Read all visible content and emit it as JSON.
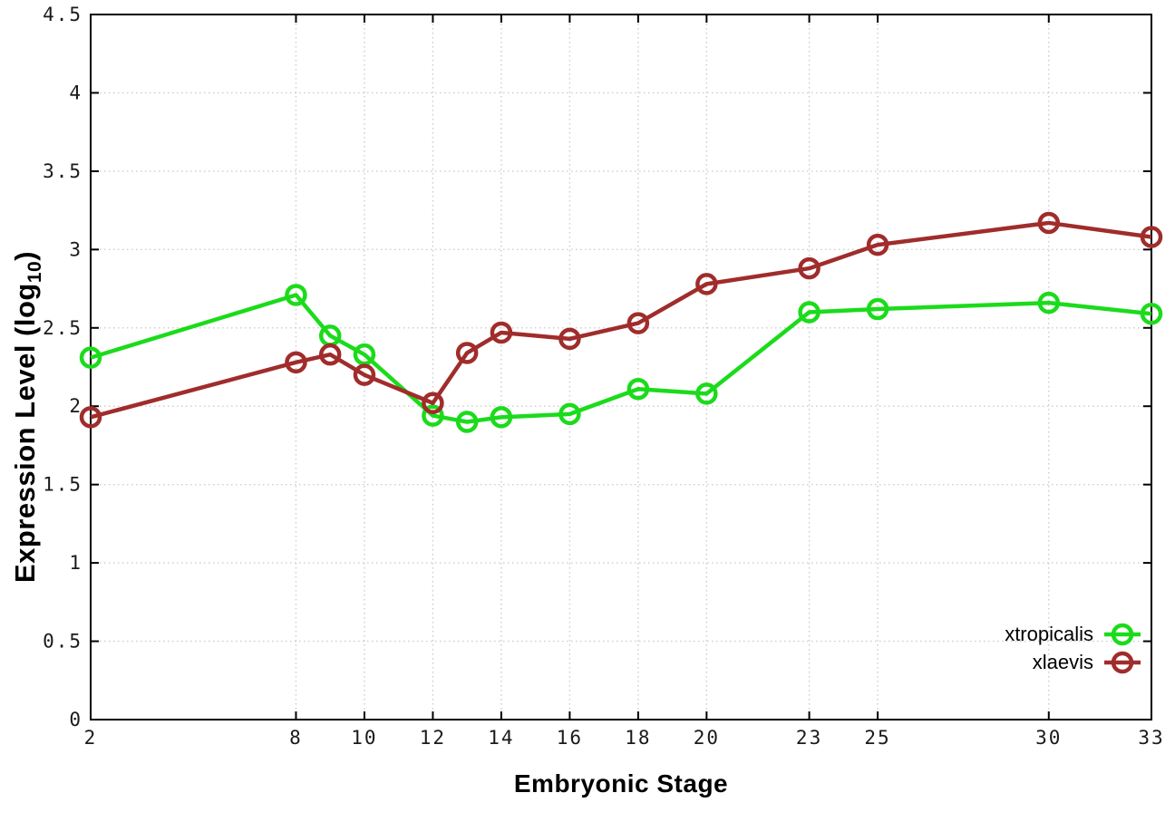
{
  "figure": {
    "xlabel": "Embryonic Stage",
    "ylabel": {
      "pre": "Expression Level (log",
      "sub": "10",
      "post": ")"
    }
  },
  "chart_data": {
    "type": "line",
    "title": "",
    "xlabel": "Embryonic Stage",
    "ylabel": "Expression Level (log10)",
    "xlim": [
      2,
      33
    ],
    "ylim": [
      0,
      4.5
    ],
    "xticks": [
      2,
      8,
      10,
      12,
      14,
      16,
      18,
      20,
      23,
      25,
      30,
      33
    ],
    "yticks": [
      0,
      0.5,
      1,
      1.5,
      2,
      2.5,
      3,
      3.5,
      4,
      4.5
    ],
    "grid": true,
    "grid_style": "dotted",
    "legend_position": "bottom-right-inside",
    "marker": "open-circle",
    "x": [
      2,
      8,
      9,
      10,
      12,
      13,
      14,
      16,
      18,
      20,
      23,
      25,
      30,
      33
    ],
    "series": [
      {
        "name": "xtropicalis",
        "color": "#1bdb1b",
        "values": [
          2.31,
          2.71,
          2.45,
          2.33,
          1.94,
          1.9,
          1.93,
          1.95,
          2.11,
          2.08,
          2.6,
          2.62,
          2.66,
          2.59
        ]
      },
      {
        "name": "xlaevis",
        "color": "#a02c2c",
        "values": [
          1.93,
          2.28,
          2.33,
          2.2,
          2.02,
          2.34,
          2.47,
          2.43,
          2.53,
          2.78,
          2.88,
          3.03,
          3.17,
          3.08
        ]
      }
    ],
    "colors": {
      "grid": "#cccccc",
      "border": "#000000",
      "tick_text": "#1a1a1a"
    }
  }
}
